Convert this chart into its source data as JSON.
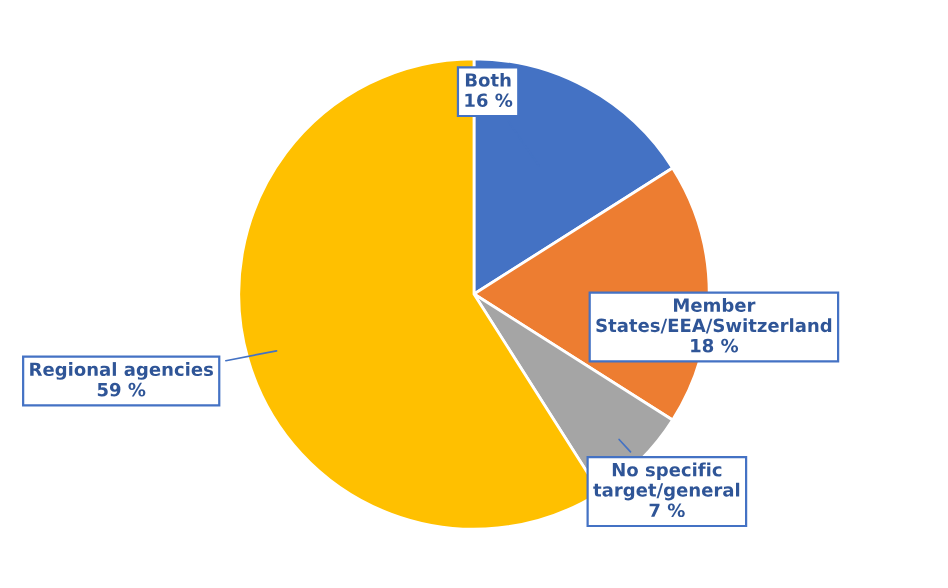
{
  "chart_data": {
    "type": "pie",
    "categories": [
      "Both",
      "Member\nStates/EEA/Switzerland",
      "No specific\ntarget/general",
      "Regional agencies"
    ],
    "values": [
      16,
      18,
      7,
      59
    ],
    "value_labels": [
      "16 %",
      "18 %",
      "7 %",
      "59 %"
    ],
    "colors": [
      "#4472c4",
      "#ed7d31",
      "#a5a5a5",
      "#ffc000"
    ]
  }
}
